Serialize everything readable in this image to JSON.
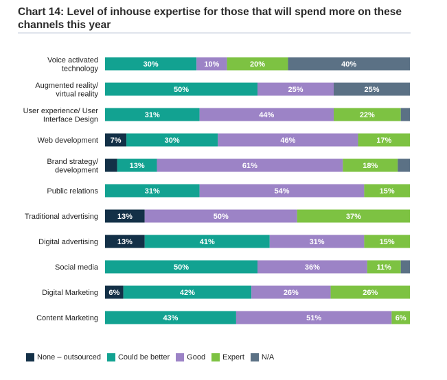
{
  "title": "Chart 14: Level of inhouse expertise for those that will spend more on these channels this year",
  "colors": {
    "None – outsourced": "#133047",
    "Could be better": "#12a291",
    "Good": "#9c83c6",
    "Expert": "#7dc242",
    "N/A": "#5b7185"
  },
  "chart_data": {
    "type": "bar",
    "orientation": "horizontal",
    "stacked": true,
    "percent_stacked": true,
    "categories": [
      "Voice activated technology",
      "Augmented reality/ virtual reality",
      "User experience/ User Interface Design",
      "Web development",
      "Brand strategy/ development",
      "Public relations",
      "Traditional advertising",
      "Digital advertising",
      "Social media",
      "Digital Marketing",
      "Content Marketing"
    ],
    "category_lines": [
      [
        "Voice activated",
        "technology"
      ],
      [
        "Augmented reality/",
        "virtual reality"
      ],
      [
        "User experience/ User",
        "Interface Design"
      ],
      [
        "Web development"
      ],
      [
        "Brand strategy/",
        "development"
      ],
      [
        "Public relations"
      ],
      [
        "Traditional advertising"
      ],
      [
        "Digital advertising"
      ],
      [
        "Social media"
      ],
      [
        "Digital Marketing"
      ],
      [
        "Content Marketing"
      ]
    ],
    "series": [
      {
        "name": "None – outsourced",
        "values": [
          0,
          0,
          0,
          7,
          4,
          0,
          13,
          13,
          0,
          6,
          0
        ]
      },
      {
        "name": "Could be better",
        "values": [
          30,
          50,
          31,
          30,
          13,
          31,
          0,
          41,
          50,
          42,
          43
        ]
      },
      {
        "name": "Good",
        "values": [
          10,
          25,
          44,
          46,
          61,
          54,
          50,
          31,
          36,
          26,
          51
        ]
      },
      {
        "name": "Expert",
        "values": [
          20,
          0,
          22,
          17,
          18,
          15,
          37,
          15,
          11,
          26,
          6
        ]
      },
      {
        "name": "N/A",
        "values": [
          40,
          25,
          3,
          0,
          4,
          0,
          0,
          0,
          3,
          0,
          0
        ]
      }
    ],
    "data_labels": [
      [
        "",
        "30%",
        "10%",
        "20%",
        "40%"
      ],
      [
        "",
        "50%",
        "25%",
        "",
        "25%"
      ],
      [
        "",
        "31%",
        "44%",
        "22%",
        ""
      ],
      [
        "7%",
        "30%",
        "46%",
        "17%",
        ""
      ],
      [
        "",
        "13%",
        "61%",
        "18%",
        ""
      ],
      [
        "",
        "31%",
        "54%",
        "15%",
        ""
      ],
      [
        "13%",
        "",
        "50%",
        "37%",
        ""
      ],
      [
        "13%",
        "41%",
        "31%",
        "15%",
        ""
      ],
      [
        "",
        "50%",
        "36%",
        "11%",
        ""
      ],
      [
        "6%",
        "42%",
        "26%",
        "26%",
        ""
      ],
      [
        "",
        "43%",
        "51%",
        "6%",
        ""
      ]
    ],
    "legend_position": "bottom-left",
    "grid": false
  }
}
